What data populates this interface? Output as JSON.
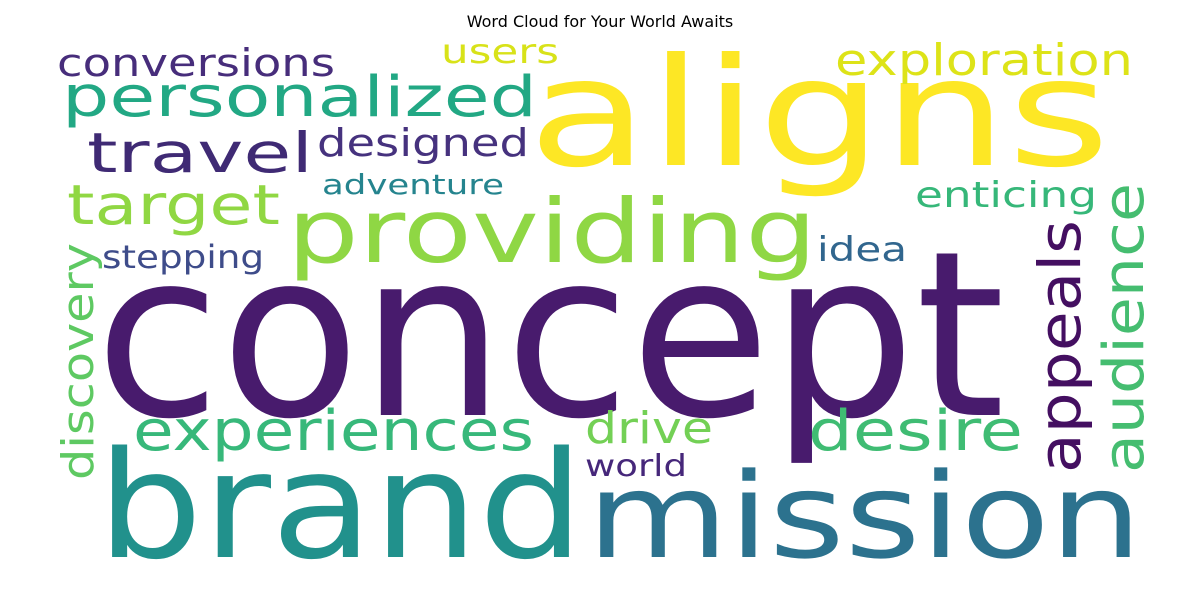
{
  "chart_data": {
    "type": "wordcloud",
    "title": "Word Cloud for Your World Awaits",
    "words": [
      {
        "text": "concept",
        "weight": 1.0,
        "color": "#481b6d"
      },
      {
        "text": "aligns",
        "weight": 0.9,
        "color": "#fde725"
      },
      {
        "text": "brand",
        "weight": 0.85,
        "color": "#21918c"
      },
      {
        "text": "mission",
        "weight": 0.75,
        "color": "#2c728e"
      },
      {
        "text": "providing",
        "weight": 0.6,
        "color": "#8fd744"
      },
      {
        "text": "personalized",
        "weight": 0.42,
        "color": "#22a884"
      },
      {
        "text": "exploration",
        "weight": 0.34,
        "color": "#dde318"
      },
      {
        "text": "travel",
        "weight": 0.4,
        "color": "#3f2a74"
      },
      {
        "text": "target",
        "weight": 0.4,
        "color": "#90d743"
      },
      {
        "text": "designed",
        "weight": 0.3,
        "color": "#46327e"
      },
      {
        "text": "conversions",
        "weight": 0.3,
        "color": "#472d7b"
      },
      {
        "text": "users",
        "weight": 0.27,
        "color": "#d8e219"
      },
      {
        "text": "experiences",
        "weight": 0.4,
        "color": "#37b87a"
      },
      {
        "text": "desire",
        "weight": 0.4,
        "color": "#3fbc73"
      },
      {
        "text": "appeals",
        "weight": 0.45,
        "color": "#440f61"
      },
      {
        "text": "audience",
        "weight": 0.4,
        "color": "#45bd70"
      },
      {
        "text": "discovery",
        "weight": 0.33,
        "color": "#5ec962"
      },
      {
        "text": "enticing",
        "weight": 0.28,
        "color": "#36b779"
      },
      {
        "text": "adventure",
        "weight": 0.22,
        "color": "#25848e"
      },
      {
        "text": "stepping",
        "weight": 0.25,
        "color": "#3e4c8a"
      },
      {
        "text": "idea",
        "weight": 0.27,
        "color": "#31668e"
      },
      {
        "text": "drive",
        "weight": 0.3,
        "color": "#73d055"
      },
      {
        "text": "world",
        "weight": 0.22,
        "color": "#46277a"
      }
    ]
  }
}
